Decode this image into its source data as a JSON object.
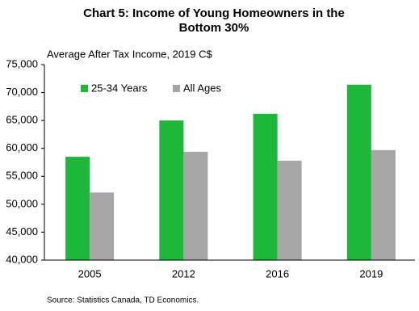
{
  "chart_data": {
    "type": "bar",
    "title": [
      "Chart 5: Income of Young Homeowners in the",
      "Bottom 30%"
    ],
    "y_label": "Average After Tax Income, 2019 C$",
    "source": "Source: Statistics Canada, TD Economics.",
    "categories": [
      "2005",
      "2012",
      "2016",
      "2019"
    ],
    "series": [
      {
        "name": "25-34 Years",
        "color": "#1db83a",
        "values": [
          58500,
          65000,
          66200,
          71400
        ]
      },
      {
        "name": "All Ages",
        "color": "#a6a6a6",
        "values": [
          52100,
          59400,
          57800,
          59700
        ]
      }
    ],
    "ylim": [
      40000,
      75000
    ],
    "yticks": [
      {
        "value": 40000,
        "label": "40,000"
      },
      {
        "value": 45000,
        "label": "45,000"
      },
      {
        "value": 50000,
        "label": "50,000"
      },
      {
        "value": 55000,
        "label": "55,000"
      },
      {
        "value": 60000,
        "label": "60,000"
      },
      {
        "value": 65000,
        "label": "65,000"
      },
      {
        "value": 70000,
        "label": "70,000"
      },
      {
        "value": 75000,
        "label": "75,000"
      }
    ],
    "grid": false,
    "legend": "top-left"
  }
}
